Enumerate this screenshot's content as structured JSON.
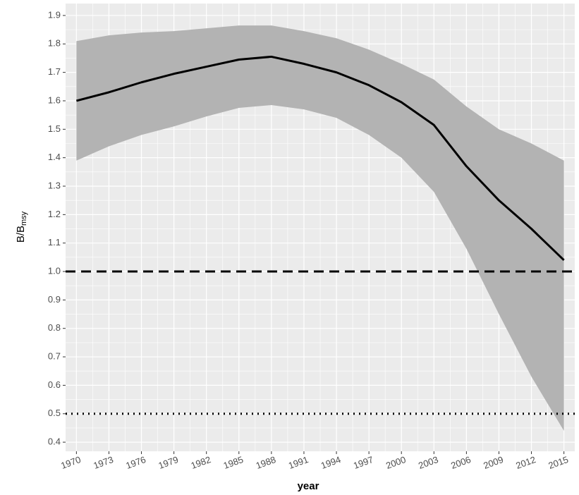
{
  "chart_data": {
    "type": "ribbon-line",
    "xlabel": "year",
    "ylabel": "B/B",
    "ylabel_subscript": "msy",
    "x": [
      1970,
      1973,
      1976,
      1979,
      1982,
      1985,
      1988,
      1991,
      1994,
      1997,
      2000,
      2003,
      2006,
      2009,
      2012,
      2015
    ],
    "series": [
      {
        "color": "#000000",
        "values": [
          1.6,
          1.63,
          1.665,
          1.695,
          1.72,
          1.745,
          1.755,
          1.73,
          1.7,
          1.655,
          1.595,
          1.515,
          1.37,
          1.25,
          1.15,
          1.04
        ],
        "upper": [
          1.81,
          1.83,
          1.84,
          1.845,
          1.855,
          1.865,
          1.865,
          1.845,
          1.82,
          1.78,
          1.73,
          1.675,
          1.58,
          1.5,
          1.45,
          1.39
        ],
        "lower": [
          1.39,
          1.44,
          1.48,
          1.51,
          1.545,
          1.575,
          1.585,
          1.57,
          1.54,
          1.48,
          1.4,
          1.28,
          1.08,
          0.85,
          0.63,
          0.44
        ],
        "ribbon_color": "#b3b3b3"
      }
    ],
    "reference_lines": [
      {
        "value": 1.0,
        "style": "dashed"
      },
      {
        "value": 0.5,
        "style": "dotted"
      }
    ],
    "xlim": [
      1969,
      2016
    ],
    "ylim": [
      0.368,
      1.942
    ],
    "xticks": [
      1970,
      1973,
      1976,
      1979,
      1982,
      1985,
      1988,
      1991,
      1994,
      1997,
      2000,
      2003,
      2006,
      2009,
      2012,
      2015
    ],
    "yticks": [
      {
        "value": 0.4,
        "label": "0.4"
      },
      {
        "value": 0.5,
        "label": "0.5"
      },
      {
        "value": 0.6,
        "label": "0.6"
      },
      {
        "value": 0.7,
        "label": "0.7"
      },
      {
        "value": 0.8,
        "label": "0.8"
      },
      {
        "value": 0.9,
        "label": "0.9"
      },
      {
        "value": 1.0,
        "label": "1.0"
      },
      {
        "value": 1.1,
        "label": "1.1"
      },
      {
        "value": 1.2,
        "label": "1.2"
      },
      {
        "value": 1.3,
        "label": "1.3"
      },
      {
        "value": 1.4,
        "label": "1.4"
      },
      {
        "value": 1.5,
        "label": "1.5"
      },
      {
        "value": 1.6,
        "label": "1.6"
      },
      {
        "value": 1.7,
        "label": "1.7"
      },
      {
        "value": 1.8,
        "label": "1.8"
      },
      {
        "value": 1.9,
        "label": "1.9"
      }
    ],
    "grid": true,
    "background": "#ebebeb"
  }
}
